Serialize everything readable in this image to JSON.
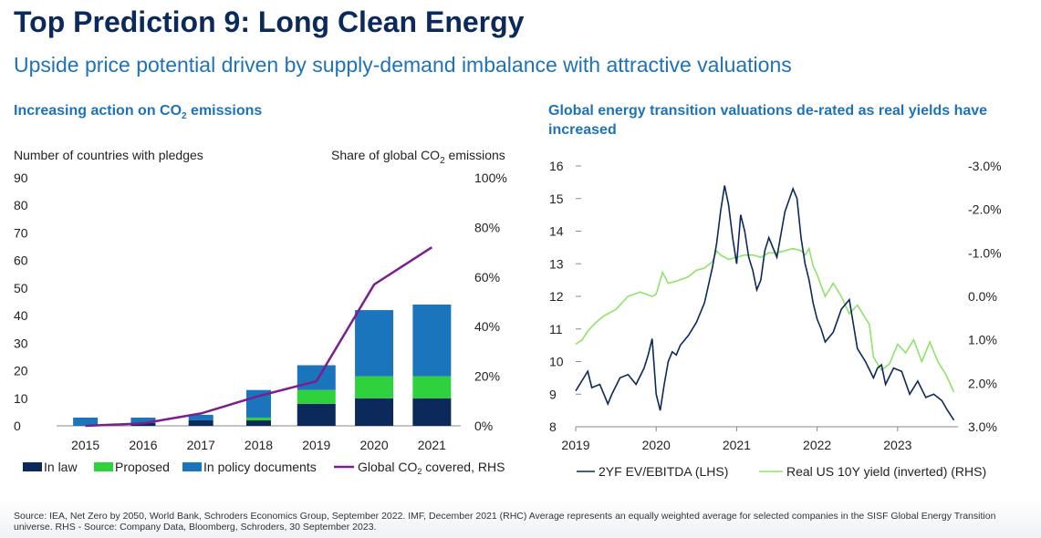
{
  "page": {
    "title": "Top Prediction 9: Long Clean Energy",
    "subtitle": "Upside price potential driven by supply-demand imbalance with attractive valuations",
    "footer": "Source: IEA, Net Zero by 2050, World Bank, Schroders Economics Group, September 2022. IMF, December 2021 (RHC) Average represents an equally weighted average for selected companies in the SISF Global Energy Transition universe. RHS - Source: Company Data, Bloomberg, Schroders, 30 September 2023."
  },
  "left_panel": {
    "title_pre": "Increasing action on CO",
    "title_sub": "2",
    "title_post": " emissions",
    "ylabel_left": "Number of countries with pledges",
    "ylabel_right_pre": "Share of global CO",
    "ylabel_right_sub": "2",
    "ylabel_right_post": " emissions"
  },
  "right_panel": {
    "title": "Global energy transition valuations de-rated as real yields have increased"
  },
  "colors": {
    "title": "#0b2a5b",
    "accent": "#1f72b8",
    "in_law": "#0b2a5b",
    "proposed": "#2fd23c",
    "policy": "#1b75bc",
    "line_co2": "#7b1e8e",
    "ev_ebitda": "#0b2a5b",
    "real_yield": "#8fe36a"
  },
  "chart_data": [
    {
      "type": "bar",
      "stacked": true,
      "categories": [
        "2015",
        "2016",
        "2017",
        "2018",
        "2019",
        "2020",
        "2021"
      ],
      "series": [
        {
          "name": "In law",
          "values": [
            0,
            1,
            2,
            2,
            8,
            10,
            10
          ]
        },
        {
          "name": "Proposed",
          "values": [
            0,
            0,
            0,
            1,
            5,
            8,
            8
          ]
        },
        {
          "name": "In policy documents",
          "values": [
            3,
            2,
            2,
            10,
            9,
            24,
            26
          ]
        }
      ],
      "line_series": {
        "name": "Global CO₂ covered, RHS",
        "legend_pre": "Global CO",
        "legend_sub": "2",
        "legend_post": " covered, RHS",
        "axis": "right",
        "values": [
          0,
          1,
          5,
          12,
          18,
          57,
          72
        ]
      },
      "ylim": [
        0,
        90
      ],
      "yticks": [
        "0",
        "10",
        "20",
        "30",
        "40",
        "50",
        "60",
        "70",
        "80",
        "90"
      ],
      "y2lim": [
        0,
        100
      ],
      "y2ticks": [
        "0%",
        "20%",
        "40%",
        "60%",
        "80%",
        "100%"
      ],
      "legend_position": "bottom",
      "grid": false
    },
    {
      "type": "line",
      "x_range": [
        2019.0,
        2023.75
      ],
      "xticks": [
        "2019",
        "2020",
        "2021",
        "2022",
        "2023"
      ],
      "ylim": [
        8,
        16
      ],
      "yticks": [
        "8",
        "9",
        "10",
        "11",
        "12",
        "13",
        "14",
        "15",
        "16"
      ],
      "y2lim": [
        3.0,
        -3.0
      ],
      "y2_inverted": true,
      "y2ticks": [
        "3.0%",
        "2.0%",
        "1.0%",
        "0.0%",
        "-1.0%",
        "-2.0%",
        "-3.0%"
      ],
      "legend_position": "bottom",
      "grid": false,
      "series": [
        {
          "name": "2YF EV/EBITDA (LHS)",
          "axis": "left",
          "x": [
            2019.0,
            2019.1,
            2019.15,
            2019.2,
            2019.3,
            2019.4,
            2019.45,
            2019.55,
            2019.65,
            2019.75,
            2019.85,
            2019.9,
            2019.95,
            2020.0,
            2020.05,
            2020.1,
            2020.15,
            2020.2,
            2020.25,
            2020.3,
            2020.4,
            2020.5,
            2020.6,
            2020.7,
            2020.75,
            2020.8,
            2020.85,
            2020.9,
            2020.95,
            2021.0,
            2021.05,
            2021.1,
            2021.15,
            2021.2,
            2021.25,
            2021.3,
            2021.35,
            2021.4,
            2021.5,
            2021.6,
            2021.7,
            2021.75,
            2021.8,
            2021.85,
            2021.9,
            2021.95,
            2022.0,
            2022.05,
            2022.1,
            2022.2,
            2022.3,
            2022.4,
            2022.5,
            2022.6,
            2022.7,
            2022.75,
            2022.8,
            2022.85,
            2022.95,
            2023.05,
            2023.15,
            2023.25,
            2023.35,
            2023.45,
            2023.55,
            2023.62,
            2023.7
          ],
          "values": [
            9.1,
            9.5,
            9.7,
            9.2,
            9.3,
            8.7,
            9.0,
            9.5,
            9.6,
            9.3,
            9.8,
            10.2,
            10.7,
            9.0,
            8.5,
            9.3,
            10.0,
            10.3,
            10.2,
            10.5,
            10.8,
            11.2,
            11.8,
            12.9,
            13.6,
            14.6,
            15.4,
            14.8,
            13.8,
            13.0,
            14.5,
            14.0,
            13.2,
            12.8,
            12.2,
            12.5,
            13.4,
            13.8,
            13.2,
            14.6,
            15.3,
            15.0,
            13.8,
            13.0,
            12.5,
            11.8,
            11.3,
            11.0,
            10.6,
            10.9,
            11.6,
            11.9,
            10.4,
            10.0,
            9.5,
            9.8,
            9.9,
            9.3,
            9.8,
            9.7,
            9.0,
            9.4,
            8.9,
            9.0,
            8.8,
            8.5,
            8.2
          ]
        },
        {
          "name": "Real US 10Y yield (inverted) (RHS)",
          "axis": "right",
          "x": [
            2019.0,
            2019.08,
            2019.15,
            2019.25,
            2019.35,
            2019.5,
            2019.65,
            2019.8,
            2019.95,
            2020.0,
            2020.08,
            2020.15,
            2020.25,
            2020.4,
            2020.5,
            2020.6,
            2020.7,
            2020.75,
            2020.8,
            2020.9,
            2021.0,
            2021.1,
            2021.2,
            2021.3,
            2021.4,
            2021.5,
            2021.6,
            2021.7,
            2021.8,
            2021.85,
            2021.9,
            2021.95,
            2022.0,
            2022.1,
            2022.2,
            2022.3,
            2022.4,
            2022.5,
            2022.6,
            2022.65,
            2022.7,
            2022.8,
            2022.9,
            2023.0,
            2023.1,
            2023.2,
            2023.3,
            2023.4,
            2023.5,
            2023.6,
            2023.7
          ],
          "values": [
            1.1,
            1.0,
            0.8,
            0.6,
            0.45,
            0.3,
            0.0,
            -0.1,
            0.0,
            -0.05,
            -0.55,
            -0.3,
            -0.35,
            -0.45,
            -0.6,
            -0.65,
            -0.8,
            -1.05,
            -0.95,
            -0.85,
            -0.9,
            -0.95,
            -0.95,
            -0.9,
            -1.0,
            -1.0,
            -1.05,
            -1.1,
            -1.05,
            -0.95,
            -1.1,
            -0.7,
            -0.5,
            0.0,
            -0.3,
            0.0,
            0.4,
            0.2,
            0.5,
            0.65,
            1.4,
            1.7,
            1.55,
            1.1,
            1.3,
            1.0,
            1.5,
            1.05,
            1.5,
            1.8,
            2.2
          ]
        }
      ]
    }
  ]
}
